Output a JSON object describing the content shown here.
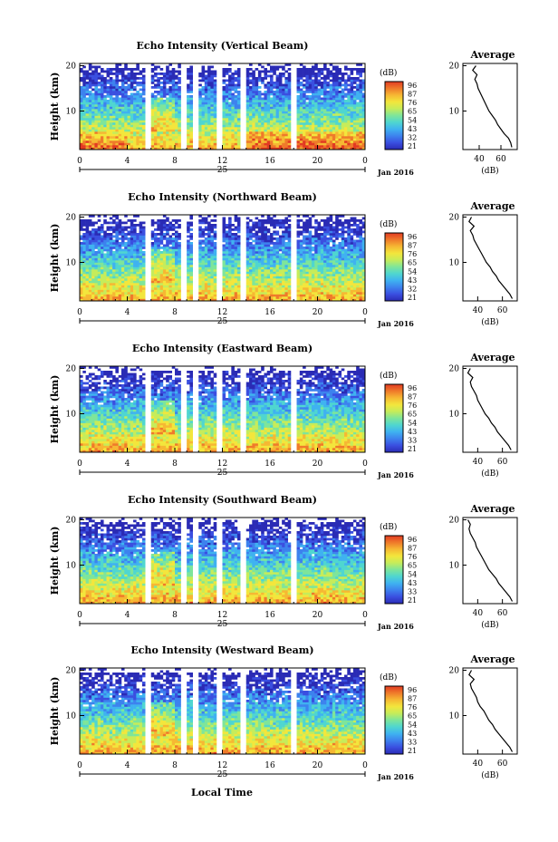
{
  "figure": {
    "xlabel": "Local Time",
    "date_label": "Jan 2016",
    "day_label": "25"
  },
  "colorbar": {
    "unit": "(dB)",
    "ticks": [
      [
        "96",
        "87",
        "76",
        "65",
        "54",
        "43",
        "32",
        "21"
      ],
      [
        "96",
        "87",
        "76",
        "65",
        "54",
        "43",
        "32",
        "21"
      ],
      [
        "96",
        "87",
        "76",
        "65",
        "54",
        "43",
        "33",
        "21"
      ],
      [
        "96",
        "87",
        "76",
        "65",
        "54",
        "43",
        "33",
        "21"
      ],
      [
        "96",
        "87",
        "76",
        "65",
        "54",
        "43",
        "33",
        "21"
      ]
    ],
    "colors": [
      "#2a2bb5",
      "#3a4fe0",
      "#3d82ee",
      "#3fb2f0",
      "#4fd6d0",
      "#7ee59a",
      "#c6ec5a",
      "#f3e63c",
      "#f6b833",
      "#ef7a2a",
      "#e23a22"
    ]
  },
  "chart_data": [
    {
      "type": "heatmap",
      "title": "Echo Intensity (Vertical Beam)",
      "ylabel": "Height (km)",
      "x_ticks": [
        "0",
        "4",
        "8",
        "12",
        "16",
        "20",
        "0"
      ],
      "xlim": [
        0,
        24
      ],
      "y_ticks": [
        "20",
        "10"
      ],
      "ylim": [
        1.5,
        20.5
      ],
      "gaps_hours": [
        [
          5.4,
          5.9
        ],
        [
          8.4,
          8.9
        ],
        [
          9.5,
          9.9
        ],
        [
          11.6,
          12.1
        ],
        [
          12.9,
          13.1
        ],
        [
          13.6,
          14.1
        ],
        [
          17.8,
          18.2
        ]
      ],
      "profile": {
        "title": "Average",
        "x_ticks": [
          "40",
          "60"
        ],
        "xlim": [
          25,
          75
        ],
        "xlabel": "(dB)",
        "y_ticks": [
          "20",
          "10"
        ],
        "heights": [
          2,
          3,
          4,
          5,
          6,
          7,
          8,
          9,
          10,
          11,
          12,
          13,
          14,
          15,
          16,
          17,
          18,
          19,
          20
        ],
        "values": [
          70,
          69,
          67,
          63,
          60,
          57,
          55,
          52,
          49,
          47,
          45,
          43,
          41,
          39,
          38,
          36,
          38,
          34,
          37
        ]
      }
    },
    {
      "type": "heatmap",
      "title": "Echo Intensity (Northward Beam)",
      "ylabel": "Height (km)",
      "x_ticks": [
        "0",
        "4",
        "8",
        "12",
        "16",
        "20",
        "0"
      ],
      "xlim": [
        0,
        24
      ],
      "y_ticks": [
        "20",
        "10"
      ],
      "ylim": [
        1.5,
        20.5
      ],
      "gaps_hours": [
        [
          5.4,
          5.9
        ],
        [
          8.4,
          8.9
        ],
        [
          9.5,
          9.9
        ],
        [
          11.6,
          12.1
        ],
        [
          12.9,
          13.1
        ],
        [
          13.6,
          14.1
        ],
        [
          17.8,
          18.2
        ]
      ],
      "profile": {
        "title": "Average",
        "x_ticks": [
          "40",
          "60"
        ],
        "xlim": [
          28,
          72
        ],
        "xlabel": "(dB)",
        "y_ticks": [
          "20",
          "10"
        ],
        "heights": [
          2,
          3,
          4,
          5,
          6,
          7,
          8,
          9,
          10,
          11,
          12,
          13,
          14,
          15,
          16,
          17,
          18,
          19,
          20
        ],
        "values": [
          68,
          66,
          63,
          60,
          57,
          55,
          52,
          50,
          47,
          45,
          43,
          41,
          39,
          37,
          36,
          34,
          37,
          33,
          35
        ]
      }
    },
    {
      "type": "heatmap",
      "title": "Echo Intensity (Eastward Beam)",
      "ylabel": "Height (km)",
      "x_ticks": [
        "0",
        "4",
        "8",
        "12",
        "16",
        "20",
        "0"
      ],
      "xlim": [
        0,
        24
      ],
      "y_ticks": [
        "20",
        "10"
      ],
      "ylim": [
        1.5,
        20.5
      ],
      "gaps_hours": [
        [
          5.4,
          5.9
        ],
        [
          8.4,
          8.9
        ],
        [
          9.5,
          9.9
        ],
        [
          11.6,
          12.1
        ],
        [
          12.9,
          13.1
        ],
        [
          13.6,
          14.1
        ],
        [
          17.8,
          18.2
        ]
      ],
      "profile": {
        "title": "Average",
        "x_ticks": [
          "40",
          "60"
        ],
        "xlim": [
          28,
          72
        ],
        "xlabel": "(dB)",
        "y_ticks": [
          "20",
          "10"
        ],
        "heights": [
          2,
          3,
          4,
          5,
          6,
          7,
          8,
          9,
          10,
          11,
          12,
          13,
          14,
          15,
          16,
          17,
          18,
          19,
          20
        ],
        "values": [
          67,
          65,
          62,
          59,
          56,
          54,
          51,
          49,
          46,
          44,
          42,
          40,
          39,
          37,
          35,
          34,
          36,
          32,
          34
        ]
      }
    },
    {
      "type": "heatmap",
      "title": "Echo Intensity (Southward Beam)",
      "ylabel": "Height (km)",
      "x_ticks": [
        "0",
        "4",
        "8",
        "12",
        "16",
        "20",
        "0"
      ],
      "xlim": [
        0,
        24
      ],
      "y_ticks": [
        "20",
        "10"
      ],
      "ylim": [
        1.5,
        20.5
      ],
      "gaps_hours": [
        [
          5.4,
          5.9
        ],
        [
          8.4,
          8.9
        ],
        [
          9.5,
          9.9
        ],
        [
          11.6,
          12.1
        ],
        [
          12.9,
          13.1
        ],
        [
          13.6,
          14.1
        ],
        [
          17.8,
          18.2
        ]
      ],
      "profile": {
        "title": "Average",
        "x_ticks": [
          "40",
          "60"
        ],
        "xlim": [
          28,
          72
        ],
        "xlabel": "(dB)",
        "y_ticks": [
          "20",
          "10"
        ],
        "heights": [
          2,
          3,
          4,
          5,
          6,
          7,
          8,
          9,
          10,
          11,
          12,
          13,
          14,
          15,
          16,
          17,
          18,
          19,
          20
        ],
        "values": [
          68,
          66,
          63,
          60,
          57,
          55,
          52,
          49,
          47,
          45,
          43,
          41,
          39,
          38,
          36,
          34,
          33,
          34,
          32
        ]
      }
    },
    {
      "type": "heatmap",
      "title": "Echo Intensity (Westward Beam)",
      "ylabel": "Height (km)",
      "x_ticks": [
        "0",
        "4",
        "8",
        "12",
        "16",
        "20",
        "0"
      ],
      "xlim": [
        0,
        24
      ],
      "y_ticks": [
        "20",
        "10"
      ],
      "ylim": [
        1.5,
        20.5
      ],
      "gaps_hours": [
        [
          5.4,
          5.9
        ],
        [
          8.4,
          8.9
        ],
        [
          9.5,
          9.9
        ],
        [
          11.6,
          12.1
        ],
        [
          12.9,
          13.1
        ],
        [
          13.6,
          14.1
        ],
        [
          17.8,
          18.2
        ]
      ],
      "profile": {
        "title": "Average",
        "x_ticks": [
          "40",
          "60"
        ],
        "xlim": [
          28,
          72
        ],
        "xlabel": "(dB)",
        "y_ticks": [
          "20",
          "10"
        ],
        "heights": [
          2,
          3,
          4,
          5,
          6,
          7,
          8,
          9,
          10,
          11,
          12,
          13,
          14,
          15,
          16,
          17,
          18,
          19,
          20
        ],
        "values": [
          68,
          66,
          63,
          60,
          57,
          54,
          52,
          49,
          47,
          45,
          42,
          40,
          39,
          37,
          35,
          34,
          37,
          33,
          35
        ]
      }
    }
  ]
}
